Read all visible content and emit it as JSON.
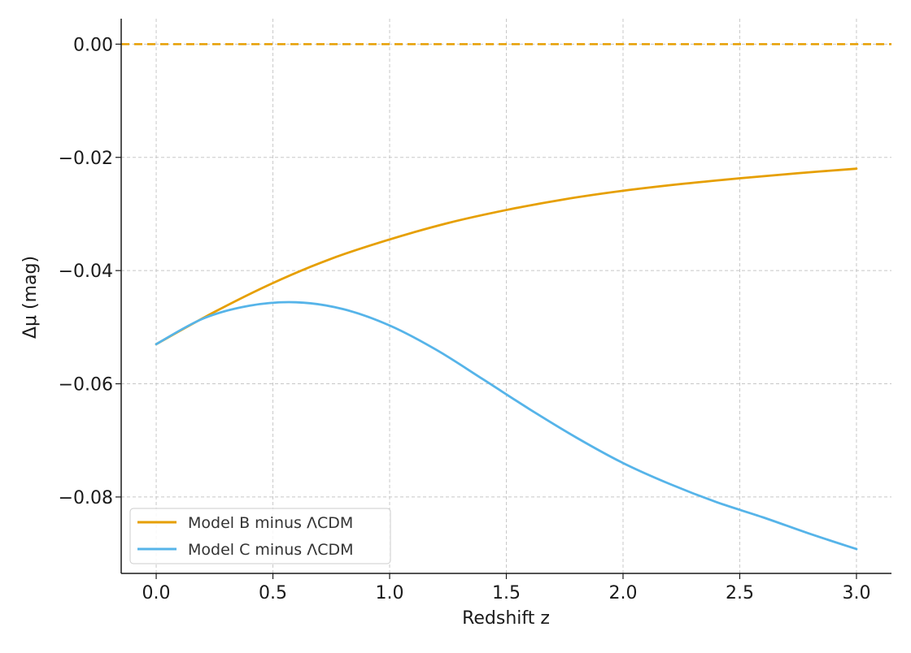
{
  "chart_data": {
    "type": "line",
    "xlabel": "Redshift z",
    "ylabel": "Δμ (mag)",
    "xlim": [
      -0.15,
      3.15
    ],
    "ylim": [
      -0.0935,
      0.0045
    ],
    "x_ticks": [
      0.0,
      0.5,
      1.0,
      1.5,
      2.0,
      2.5,
      3.0
    ],
    "x_tick_labels": [
      "0.0",
      "0.5",
      "1.0",
      "1.5",
      "2.0",
      "2.5",
      "3.0"
    ],
    "y_ticks": [
      0.0,
      -0.02,
      -0.04,
      -0.06,
      -0.08
    ],
    "y_tick_labels": [
      "0.00",
      "−0.02",
      "−0.04",
      "−0.06",
      "−0.08"
    ],
    "grid": true,
    "legend_position": "bottom-left",
    "reference_line": {
      "y": 0.0,
      "style": "dashed",
      "color": "#E69F00"
    },
    "series": [
      {
        "name": "Model B minus ΛCDM",
        "color": "#E69F00",
        "x": [
          0.0,
          0.25,
          0.5,
          0.75,
          1.0,
          1.25,
          1.5,
          1.75,
          2.0,
          2.25,
          2.5,
          2.75,
          3.0
        ],
        "y": [
          -0.053,
          -0.0473,
          -0.0422,
          -0.0379,
          -0.0345,
          -0.0316,
          -0.0293,
          -0.0274,
          -0.0259,
          -0.0247,
          -0.0237,
          -0.0228,
          -0.022
        ]
      },
      {
        "name": "Model C minus ΛCDM",
        "color": "#56B4E9",
        "x": [
          0.0,
          0.2,
          0.4,
          0.6,
          0.8,
          1.0,
          1.2,
          1.4,
          1.6,
          1.8,
          2.0,
          2.2,
          2.4,
          2.6,
          2.8,
          3.0
        ],
        "y": [
          -0.053,
          -0.0485,
          -0.0462,
          -0.0456,
          -0.0468,
          -0.0497,
          -0.054,
          -0.0592,
          -0.0645,
          -0.0695,
          -0.074,
          -0.0777,
          -0.0809,
          -0.0836,
          -0.0865,
          -0.0892
        ]
      }
    ]
  }
}
